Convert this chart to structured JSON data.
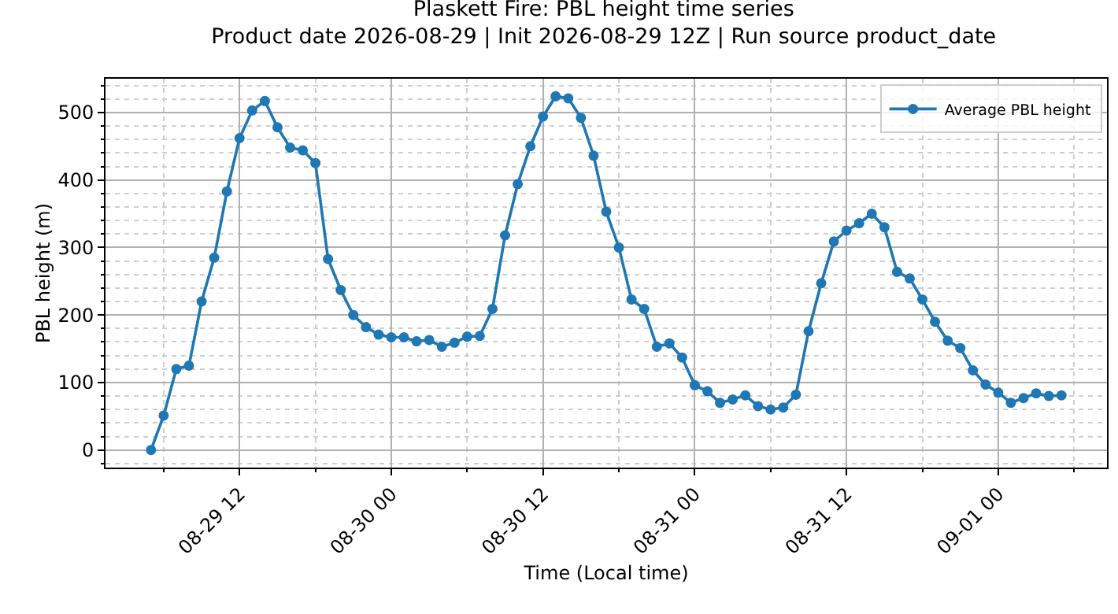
{
  "chart_data": {
    "type": "line",
    "title": "Plaskett Fire: PBL height time series",
    "subtitle": "Product date 2026-08-29 | Init 2026-08-29 12Z | Run source product_date",
    "xlabel": "Time (Local time)",
    "ylabel": "PBL height (m)",
    "x": [
      "2026-08-29T05:00",
      "2026-08-29T06:00",
      "2026-08-29T07:00",
      "2026-08-29T08:00",
      "2026-08-29T09:00",
      "2026-08-29T10:00",
      "2026-08-29T11:00",
      "2026-08-29T12:00",
      "2026-08-29T13:00",
      "2026-08-29T14:00",
      "2026-08-29T15:00",
      "2026-08-29T16:00",
      "2026-08-29T17:00",
      "2026-08-29T18:00",
      "2026-08-29T19:00",
      "2026-08-29T20:00",
      "2026-08-29T21:00",
      "2026-08-29T22:00",
      "2026-08-29T23:00",
      "2026-08-30T00:00",
      "2026-08-30T01:00",
      "2026-08-30T02:00",
      "2026-08-30T03:00",
      "2026-08-30T04:00",
      "2026-08-30T05:00",
      "2026-08-30T06:00",
      "2026-08-30T07:00",
      "2026-08-30T08:00",
      "2026-08-30T09:00",
      "2026-08-30T10:00",
      "2026-08-30T11:00",
      "2026-08-30T12:00",
      "2026-08-30T13:00",
      "2026-08-30T14:00",
      "2026-08-30T15:00",
      "2026-08-30T16:00",
      "2026-08-30T17:00",
      "2026-08-30T18:00",
      "2026-08-30T19:00",
      "2026-08-30T20:00",
      "2026-08-30T21:00",
      "2026-08-30T22:00",
      "2026-08-30T23:00",
      "2026-08-31T00:00",
      "2026-08-31T01:00",
      "2026-08-31T02:00",
      "2026-08-31T03:00",
      "2026-08-31T04:00",
      "2026-08-31T05:00",
      "2026-08-31T06:00",
      "2026-08-31T07:00",
      "2026-08-31T08:00",
      "2026-08-31T09:00",
      "2026-08-31T10:00",
      "2026-08-31T11:00",
      "2026-08-31T12:00",
      "2026-08-31T13:00",
      "2026-08-31T14:00",
      "2026-08-31T15:00",
      "2026-08-31T16:00",
      "2026-08-31T17:00",
      "2026-08-31T18:00",
      "2026-08-31T19:00",
      "2026-08-31T20:00",
      "2026-08-31T21:00",
      "2026-08-31T22:00",
      "2026-08-31T23:00",
      "2026-09-01T00:00",
      "2026-09-01T01:00",
      "2026-09-01T02:00",
      "2026-09-01T03:00",
      "2026-09-01T04:00",
      "2026-09-01T05:00"
    ],
    "series": [
      {
        "name": "Average PBL height",
        "color": "#1f77b4",
        "values": [
          0,
          51,
          120,
          125,
          220,
          285,
          383,
          462,
          503,
          517,
          478,
          448,
          444,
          425,
          283,
          237,
          200,
          182,
          171,
          167,
          167,
          161,
          163,
          153,
          159,
          168,
          169,
          209,
          318,
          394,
          450,
          494,
          524,
          521,
          492,
          436,
          353,
          300,
          223,
          209,
          153,
          158,
          137,
          96,
          87,
          70,
          75,
          81,
          65,
          60,
          63,
          82,
          176,
          247,
          309,
          325,
          336,
          350,
          330,
          264,
          254,
          223,
          190,
          162,
          151,
          118,
          97,
          85,
          70,
          77,
          84,
          80,
          81
        ]
      }
    ],
    "xlim": [
      "2026-08-29T01:24",
      "2026-09-01T08:36"
    ],
    "xticks": [
      {
        "value": "2026-08-29T06:00",
        "label": null
      },
      {
        "value": "2026-08-29T12:00",
        "label": "08-29 12"
      },
      {
        "value": "2026-08-29T18:00",
        "label": null
      },
      {
        "value": "2026-08-30T00:00",
        "label": "08-30 00"
      },
      {
        "value": "2026-08-30T06:00",
        "label": null
      },
      {
        "value": "2026-08-30T12:00",
        "label": "08-30 12"
      },
      {
        "value": "2026-08-30T18:00",
        "label": null
      },
      {
        "value": "2026-08-31T00:00",
        "label": "08-31 00"
      },
      {
        "value": "2026-08-31T06:00",
        "label": null
      },
      {
        "value": "2026-08-31T12:00",
        "label": "08-31 12"
      },
      {
        "value": "2026-08-31T18:00",
        "label": null
      },
      {
        "value": "2026-09-01T00:00",
        "label": "09-01 00"
      },
      {
        "value": "2026-09-01T06:00",
        "label": null
      }
    ],
    "ylim": [
      -26,
      550
    ],
    "yticks": [
      {
        "value": -20,
        "label": null
      },
      0,
      {
        "value": 20,
        "label": null
      },
      {
        "value": 40,
        "label": null
      },
      {
        "value": 60,
        "label": null
      },
      {
        "value": 80,
        "label": null
      },
      100,
      {
        "value": 120,
        "label": null
      },
      {
        "value": 140,
        "label": null
      },
      {
        "value": 160,
        "label": null
      },
      {
        "value": 180,
        "label": null
      },
      200,
      {
        "value": 220,
        "label": null
      },
      {
        "value": 240,
        "label": null
      },
      {
        "value": 260,
        "label": null
      },
      {
        "value": 280,
        "label": null
      },
      300,
      {
        "value": 320,
        "label": null
      },
      {
        "value": 340,
        "label": null
      },
      {
        "value": 360,
        "label": null
      },
      {
        "value": 380,
        "label": null
      },
      400,
      {
        "value": 420,
        "label": null
      },
      {
        "value": 440,
        "label": null
      },
      {
        "value": 460,
        "label": null
      },
      {
        "value": 480,
        "label": null
      },
      500,
      {
        "value": 520,
        "label": null
      },
      {
        "value": 540,
        "label": null
      }
    ],
    "grid": true,
    "legend": "top right",
    "marker": "circle",
    "line_style": "solid"
  }
}
